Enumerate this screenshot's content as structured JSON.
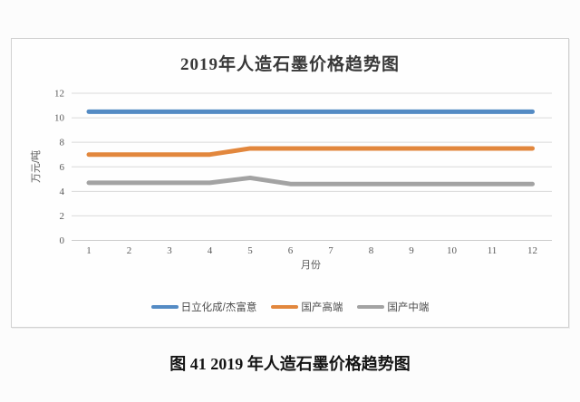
{
  "page": {
    "background": "#fcfcfc",
    "caption": "图 41 2019 年人造石墨价格趋势图"
  },
  "chart_data": {
    "type": "line",
    "title": "2019年人造石墨价格趋势图",
    "xlabel": "月份",
    "ylabel": "万元/吨",
    "x": [
      1,
      2,
      3,
      4,
      5,
      6,
      7,
      8,
      9,
      10,
      11,
      12
    ],
    "ylim": [
      0,
      12
    ],
    "ytick_step": 2,
    "grid": true,
    "legend_position": "bottom",
    "series": [
      {
        "name": "日立化成/杰富意",
        "color": "#548BC4",
        "values": [
          10.5,
          10.5,
          10.5,
          10.5,
          10.5,
          10.5,
          10.5,
          10.5,
          10.5,
          10.5,
          10.5,
          10.5
        ]
      },
      {
        "name": "国产高端",
        "color": "#E2873D",
        "values": [
          7.0,
          7.0,
          7.0,
          7.0,
          7.5,
          7.5,
          7.5,
          7.5,
          7.5,
          7.5,
          7.5,
          7.5
        ]
      },
      {
        "name": "国产中端",
        "color": "#A3A3A3",
        "values": [
          4.7,
          4.7,
          4.7,
          4.7,
          5.1,
          4.6,
          4.6,
          4.6,
          4.6,
          4.6,
          4.6,
          4.6
        ]
      }
    ]
  }
}
